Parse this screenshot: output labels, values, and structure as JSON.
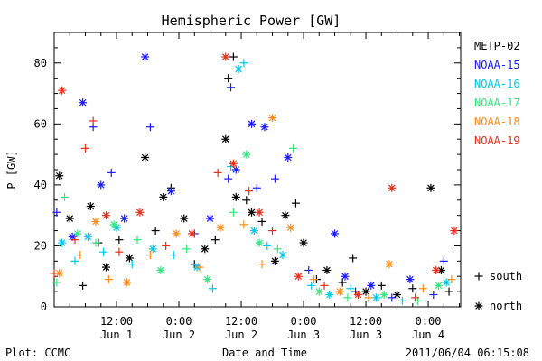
{
  "chart_data": {
    "type": "scatter",
    "title": "Hemispheric Power [GW]",
    "ylabel": "P [GW]",
    "xlabel": "Date and Time",
    "footer_left": "Plot: CCMC",
    "footer_right": "2011/06/04 06:15:08",
    "ylim": [
      0,
      90
    ],
    "yticks": [
      0,
      20,
      40,
      60,
      80
    ],
    "xlim": [
      "2011-06-01T00:00",
      "2011-06-04T06:15"
    ],
    "xticks": [
      {
        "time": "2011-06-01T12:00",
        "hour": "12:00",
        "day": "Jun 1"
      },
      {
        "time": "2011-06-02T00:00",
        "hour": "0:00",
        "day": "Jun 2"
      },
      {
        "time": "2011-06-02T12:00",
        "hour": "12:00",
        "day": "Jun 2"
      },
      {
        "time": "2011-06-03T00:00",
        "hour": "0:00",
        "day": "Jun 3"
      },
      {
        "time": "2011-06-03T12:00",
        "hour": "12:00",
        "day": "Jun 3"
      },
      {
        "time": "2011-06-04T00:00",
        "hour": "0:00",
        "day": "Jun 4"
      }
    ],
    "marker_legend": [
      {
        "marker": "plus",
        "label": "south"
      },
      {
        "marker": "star",
        "label": "north"
      }
    ],
    "series": [
      {
        "name": "METP-02",
        "color": "#000000",
        "points": [
          {
            "x": "2011-06-01T01:00",
            "y": 43,
            "m": "star"
          },
          {
            "x": "2011-06-01T03:00",
            "y": 29,
            "m": "star"
          },
          {
            "x": "2011-06-01T05:30",
            "y": 7,
            "m": "plus"
          },
          {
            "x": "2011-06-01T07:00",
            "y": 33,
            "m": "star"
          },
          {
            "x": "2011-06-01T08:30",
            "y": 21,
            "m": "plus"
          },
          {
            "x": "2011-06-01T10:00",
            "y": 13,
            "m": "star"
          },
          {
            "x": "2011-06-01T12:30",
            "y": 22,
            "m": "plus"
          },
          {
            "x": "2011-06-01T14:30",
            "y": 16,
            "m": "star"
          },
          {
            "x": "2011-06-01T17:30",
            "y": 49,
            "m": "star"
          },
          {
            "x": "2011-06-01T19:30",
            "y": 25,
            "m": "plus"
          },
          {
            "x": "2011-06-01T21:00",
            "y": 36,
            "m": "star"
          },
          {
            "x": "2011-06-01T22:30",
            "y": 39,
            "m": "plus"
          },
          {
            "x": "2011-06-02T01:00",
            "y": 29,
            "m": "star"
          },
          {
            "x": "2011-06-02T03:00",
            "y": 14,
            "m": "plus"
          },
          {
            "x": "2011-06-02T05:00",
            "y": 19,
            "m": "star"
          },
          {
            "x": "2011-06-02T07:00",
            "y": 22,
            "m": "plus"
          },
          {
            "x": "2011-06-02T09:00",
            "y": 55,
            "m": "star"
          },
          {
            "x": "2011-06-02T09:30",
            "y": 75,
            "m": "plus"
          },
          {
            "x": "2011-06-02T10:30",
            "y": 82,
            "m": "plus"
          },
          {
            "x": "2011-06-02T11:00",
            "y": 36,
            "m": "star"
          },
          {
            "x": "2011-06-02T13:00",
            "y": 35,
            "m": "plus"
          },
          {
            "x": "2011-06-02T14:00",
            "y": 31,
            "m": "star"
          },
          {
            "x": "2011-06-02T16:00",
            "y": 28,
            "m": "plus"
          },
          {
            "x": "2011-06-02T18:30",
            "y": 15,
            "m": "star"
          },
          {
            "x": "2011-06-02T20:30",
            "y": 30,
            "m": "star"
          },
          {
            "x": "2011-06-02T22:30",
            "y": 34,
            "m": "plus"
          },
          {
            "x": "2011-06-03T00:00",
            "y": 21,
            "m": "star"
          },
          {
            "x": "2011-06-03T02:30",
            "y": 9,
            "m": "plus"
          },
          {
            "x": "2011-06-03T04:30",
            "y": 12,
            "m": "star"
          },
          {
            "x": "2011-06-03T07:30",
            "y": 8,
            "m": "plus"
          },
          {
            "x": "2011-06-03T09:30",
            "y": 16,
            "m": "plus"
          },
          {
            "x": "2011-06-03T12:00",
            "y": 5,
            "m": "star"
          },
          {
            "x": "2011-06-03T15:00",
            "y": 7,
            "m": "plus"
          },
          {
            "x": "2011-06-03T18:00",
            "y": 4,
            "m": "star"
          },
          {
            "x": "2011-06-03T21:00",
            "y": 6,
            "m": "plus"
          },
          {
            "x": "2011-06-04T00:30",
            "y": 39,
            "m": "star"
          },
          {
            "x": "2011-06-04T02:30",
            "y": 12,
            "m": "star"
          },
          {
            "x": "2011-06-04T04:00",
            "y": 5,
            "m": "plus"
          }
        ]
      },
      {
        "name": "NOAA-15",
        "color": "#1a1aff",
        "points": [
          {
            "x": "2011-06-01T00:30",
            "y": 31,
            "m": "plus"
          },
          {
            "x": "2011-06-01T03:30",
            "y": 23,
            "m": "star"
          },
          {
            "x": "2011-06-01T05:30",
            "y": 67,
            "m": "star"
          },
          {
            "x": "2011-06-01T07:30",
            "y": 59,
            "m": "plus"
          },
          {
            "x": "2011-06-01T09:00",
            "y": 40,
            "m": "star"
          },
          {
            "x": "2011-06-01T11:00",
            "y": 44,
            "m": "plus"
          },
          {
            "x": "2011-06-01T13:30",
            "y": 29,
            "m": "star"
          },
          {
            "x": "2011-06-01T17:30",
            "y": 82,
            "m": "star"
          },
          {
            "x": "2011-06-01T18:30",
            "y": 59,
            "m": "plus"
          },
          {
            "x": "2011-06-01T22:30",
            "y": 38,
            "m": "star"
          },
          {
            "x": "2011-06-02T03:00",
            "y": 24,
            "m": "plus"
          },
          {
            "x": "2011-06-02T06:00",
            "y": 29,
            "m": "star"
          },
          {
            "x": "2011-06-02T09:30",
            "y": 42,
            "m": "plus"
          },
          {
            "x": "2011-06-02T10:00",
            "y": 72,
            "m": "plus"
          },
          {
            "x": "2011-06-02T11:00",
            "y": 45,
            "m": "star"
          },
          {
            "x": "2011-06-02T14:00",
            "y": 60,
            "m": "star"
          },
          {
            "x": "2011-06-02T15:00",
            "y": 39,
            "m": "plus"
          },
          {
            "x": "2011-06-02T16:30",
            "y": 59,
            "m": "star"
          },
          {
            "x": "2011-06-02T18:30",
            "y": 42,
            "m": "plus"
          },
          {
            "x": "2011-06-02T21:00",
            "y": 49,
            "m": "star"
          },
          {
            "x": "2011-06-03T01:00",
            "y": 12,
            "m": "plus"
          },
          {
            "x": "2011-06-03T06:00",
            "y": 24,
            "m": "star"
          },
          {
            "x": "2011-06-03T08:00",
            "y": 10,
            "m": "star"
          },
          {
            "x": "2011-06-03T10:00",
            "y": 5,
            "m": "plus"
          },
          {
            "x": "2011-06-03T13:00",
            "y": 7,
            "m": "star"
          },
          {
            "x": "2011-06-03T17:00",
            "y": 3,
            "m": "plus"
          },
          {
            "x": "2011-06-03T20:30",
            "y": 9,
            "m": "star"
          },
          {
            "x": "2011-06-04T01:00",
            "y": 4,
            "m": "plus"
          },
          {
            "x": "2011-06-04T03:00",
            "y": 15,
            "m": "plus"
          }
        ]
      },
      {
        "name": "NOAA-16",
        "color": "#00c8e6",
        "points": [
          {
            "x": "2011-06-01T01:30",
            "y": 21,
            "m": "star"
          },
          {
            "x": "2011-06-01T04:00",
            "y": 15,
            "m": "plus"
          },
          {
            "x": "2011-06-01T06:30",
            "y": 23,
            "m": "star"
          },
          {
            "x": "2011-06-01T09:30",
            "y": 18,
            "m": "plus"
          },
          {
            "x": "2011-06-01T12:00",
            "y": 26,
            "m": "star"
          },
          {
            "x": "2011-06-01T15:00",
            "y": 14,
            "m": "plus"
          },
          {
            "x": "2011-06-01T19:00",
            "y": 19,
            "m": "star"
          },
          {
            "x": "2011-06-01T23:00",
            "y": 17,
            "m": "plus"
          },
          {
            "x": "2011-06-02T03:30",
            "y": 13,
            "m": "star"
          },
          {
            "x": "2011-06-02T06:30",
            "y": 6,
            "m": "plus"
          },
          {
            "x": "2011-06-02T10:00",
            "y": 46,
            "m": "plus"
          },
          {
            "x": "2011-06-02T11:30",
            "y": 78,
            "m": "star"
          },
          {
            "x": "2011-06-02T12:30",
            "y": 80,
            "m": "plus"
          },
          {
            "x": "2011-06-02T14:30",
            "y": 25,
            "m": "star"
          },
          {
            "x": "2011-06-02T17:00",
            "y": 20,
            "m": "plus"
          },
          {
            "x": "2011-06-02T20:00",
            "y": 17,
            "m": "star"
          },
          {
            "x": "2011-06-03T01:30",
            "y": 7,
            "m": "plus"
          },
          {
            "x": "2011-06-03T05:00",
            "y": 4,
            "m": "star"
          },
          {
            "x": "2011-06-03T09:00",
            "y": 6,
            "m": "plus"
          },
          {
            "x": "2011-06-03T14:00",
            "y": 3,
            "m": "star"
          },
          {
            "x": "2011-06-03T19:00",
            "y": 2,
            "m": "plus"
          },
          {
            "x": "2011-06-04T03:30",
            "y": 8,
            "m": "star"
          }
        ]
      },
      {
        "name": "NOAA-17",
        "color": "#33e680",
        "points": [
          {
            "x": "2011-06-01T00:30",
            "y": 8,
            "m": "plus"
          },
          {
            "x": "2011-06-01T02:00",
            "y": 36,
            "m": "plus"
          },
          {
            "x": "2011-06-01T04:30",
            "y": 24,
            "m": "star"
          },
          {
            "x": "2011-06-01T08:00",
            "y": 21,
            "m": "plus"
          },
          {
            "x": "2011-06-01T11:30",
            "y": 27,
            "m": "star"
          },
          {
            "x": "2011-06-01T16:00",
            "y": 22,
            "m": "plus"
          },
          {
            "x": "2011-06-01T20:30",
            "y": 12,
            "m": "star"
          },
          {
            "x": "2011-06-02T01:30",
            "y": 19,
            "m": "plus"
          },
          {
            "x": "2011-06-02T05:30",
            "y": 9,
            "m": "star"
          },
          {
            "x": "2011-06-02T10:30",
            "y": 31,
            "m": "plus"
          },
          {
            "x": "2011-06-02T13:00",
            "y": 50,
            "m": "star"
          },
          {
            "x": "2011-06-02T15:30",
            "y": 21,
            "m": "star"
          },
          {
            "x": "2011-06-02T19:00",
            "y": 19,
            "m": "plus"
          },
          {
            "x": "2011-06-02T22:00",
            "y": 52,
            "m": "plus"
          },
          {
            "x": "2011-06-03T03:00",
            "y": 5,
            "m": "star"
          },
          {
            "x": "2011-06-03T08:30",
            "y": 3,
            "m": "plus"
          },
          {
            "x": "2011-06-03T15:30",
            "y": 4,
            "m": "star"
          },
          {
            "x": "2011-06-03T22:00",
            "y": 2,
            "m": "plus"
          },
          {
            "x": "2011-06-04T02:00",
            "y": 7,
            "m": "star"
          }
        ]
      },
      {
        "name": "NOAA-18",
        "color": "#ff8c1a",
        "points": [
          {
            "x": "2011-06-01T01:00",
            "y": 11,
            "m": "star"
          },
          {
            "x": "2011-06-01T05:00",
            "y": 17,
            "m": "plus"
          },
          {
            "x": "2011-06-01T08:00",
            "y": 28,
            "m": "star"
          },
          {
            "x": "2011-06-01T10:30",
            "y": 9,
            "m": "plus"
          },
          {
            "x": "2011-06-01T14:00",
            "y": 8,
            "m": "star"
          },
          {
            "x": "2011-06-01T18:30",
            "y": 17,
            "m": "plus"
          },
          {
            "x": "2011-06-01T23:30",
            "y": 24,
            "m": "star"
          },
          {
            "x": "2011-06-02T04:00",
            "y": 13,
            "m": "plus"
          },
          {
            "x": "2011-06-02T08:00",
            "y": 26,
            "m": "star"
          },
          {
            "x": "2011-06-02T12:30",
            "y": 27,
            "m": "plus"
          },
          {
            "x": "2011-06-02T16:00",
            "y": 14,
            "m": "plus"
          },
          {
            "x": "2011-06-02T18:00",
            "y": 62,
            "m": "star"
          },
          {
            "x": "2011-06-02T21:30",
            "y": 26,
            "m": "star"
          },
          {
            "x": "2011-06-03T02:00",
            "y": 9,
            "m": "plus"
          },
          {
            "x": "2011-06-03T07:00",
            "y": 5,
            "m": "star"
          },
          {
            "x": "2011-06-03T12:30",
            "y": 3,
            "m": "plus"
          },
          {
            "x": "2011-06-03T16:30",
            "y": 14,
            "m": "star"
          },
          {
            "x": "2011-06-03T23:00",
            "y": 6,
            "m": "plus"
          },
          {
            "x": "2011-06-04T04:30",
            "y": 9,
            "m": "plus"
          }
        ]
      },
      {
        "name": "NOAA-19",
        "color": "#e62e1a",
        "points": [
          {
            "x": "2011-06-01T00:00",
            "y": 11,
            "m": "plus"
          },
          {
            "x": "2011-06-01T01:30",
            "y": 71,
            "m": "star"
          },
          {
            "x": "2011-06-01T04:00",
            "y": 22,
            "m": "plus"
          },
          {
            "x": "2011-06-01T06:00",
            "y": 52,
            "m": "plus"
          },
          {
            "x": "2011-06-01T07:30",
            "y": 61,
            "m": "plus"
          },
          {
            "x": "2011-06-01T10:00",
            "y": 30,
            "m": "star"
          },
          {
            "x": "2011-06-01T12:30",
            "y": 18,
            "m": "plus"
          },
          {
            "x": "2011-06-01T16:30",
            "y": 31,
            "m": "star"
          },
          {
            "x": "2011-06-01T21:30",
            "y": 20,
            "m": "plus"
          },
          {
            "x": "2011-06-02T02:30",
            "y": 24,
            "m": "star"
          },
          {
            "x": "2011-06-02T07:30",
            "y": 44,
            "m": "plus"
          },
          {
            "x": "2011-06-02T09:00",
            "y": 82,
            "m": "star"
          },
          {
            "x": "2011-06-02T10:30",
            "y": 47,
            "m": "star"
          },
          {
            "x": "2011-06-02T13:30",
            "y": 38,
            "m": "plus"
          },
          {
            "x": "2011-06-02T15:30",
            "y": 31,
            "m": "star"
          },
          {
            "x": "2011-06-02T18:00",
            "y": 25,
            "m": "plus"
          },
          {
            "x": "2011-06-02T23:00",
            "y": 10,
            "m": "star"
          },
          {
            "x": "2011-06-03T04:00",
            "y": 7,
            "m": "plus"
          },
          {
            "x": "2011-06-03T10:30",
            "y": 4,
            "m": "star"
          },
          {
            "x": "2011-06-03T17:00",
            "y": 39,
            "m": "star"
          },
          {
            "x": "2011-06-03T21:30",
            "y": 3,
            "m": "plus"
          },
          {
            "x": "2011-06-04T01:30",
            "y": 12,
            "m": "star"
          },
          {
            "x": "2011-06-04T05:00",
            "y": 25,
            "m": "star"
          }
        ]
      }
    ]
  }
}
